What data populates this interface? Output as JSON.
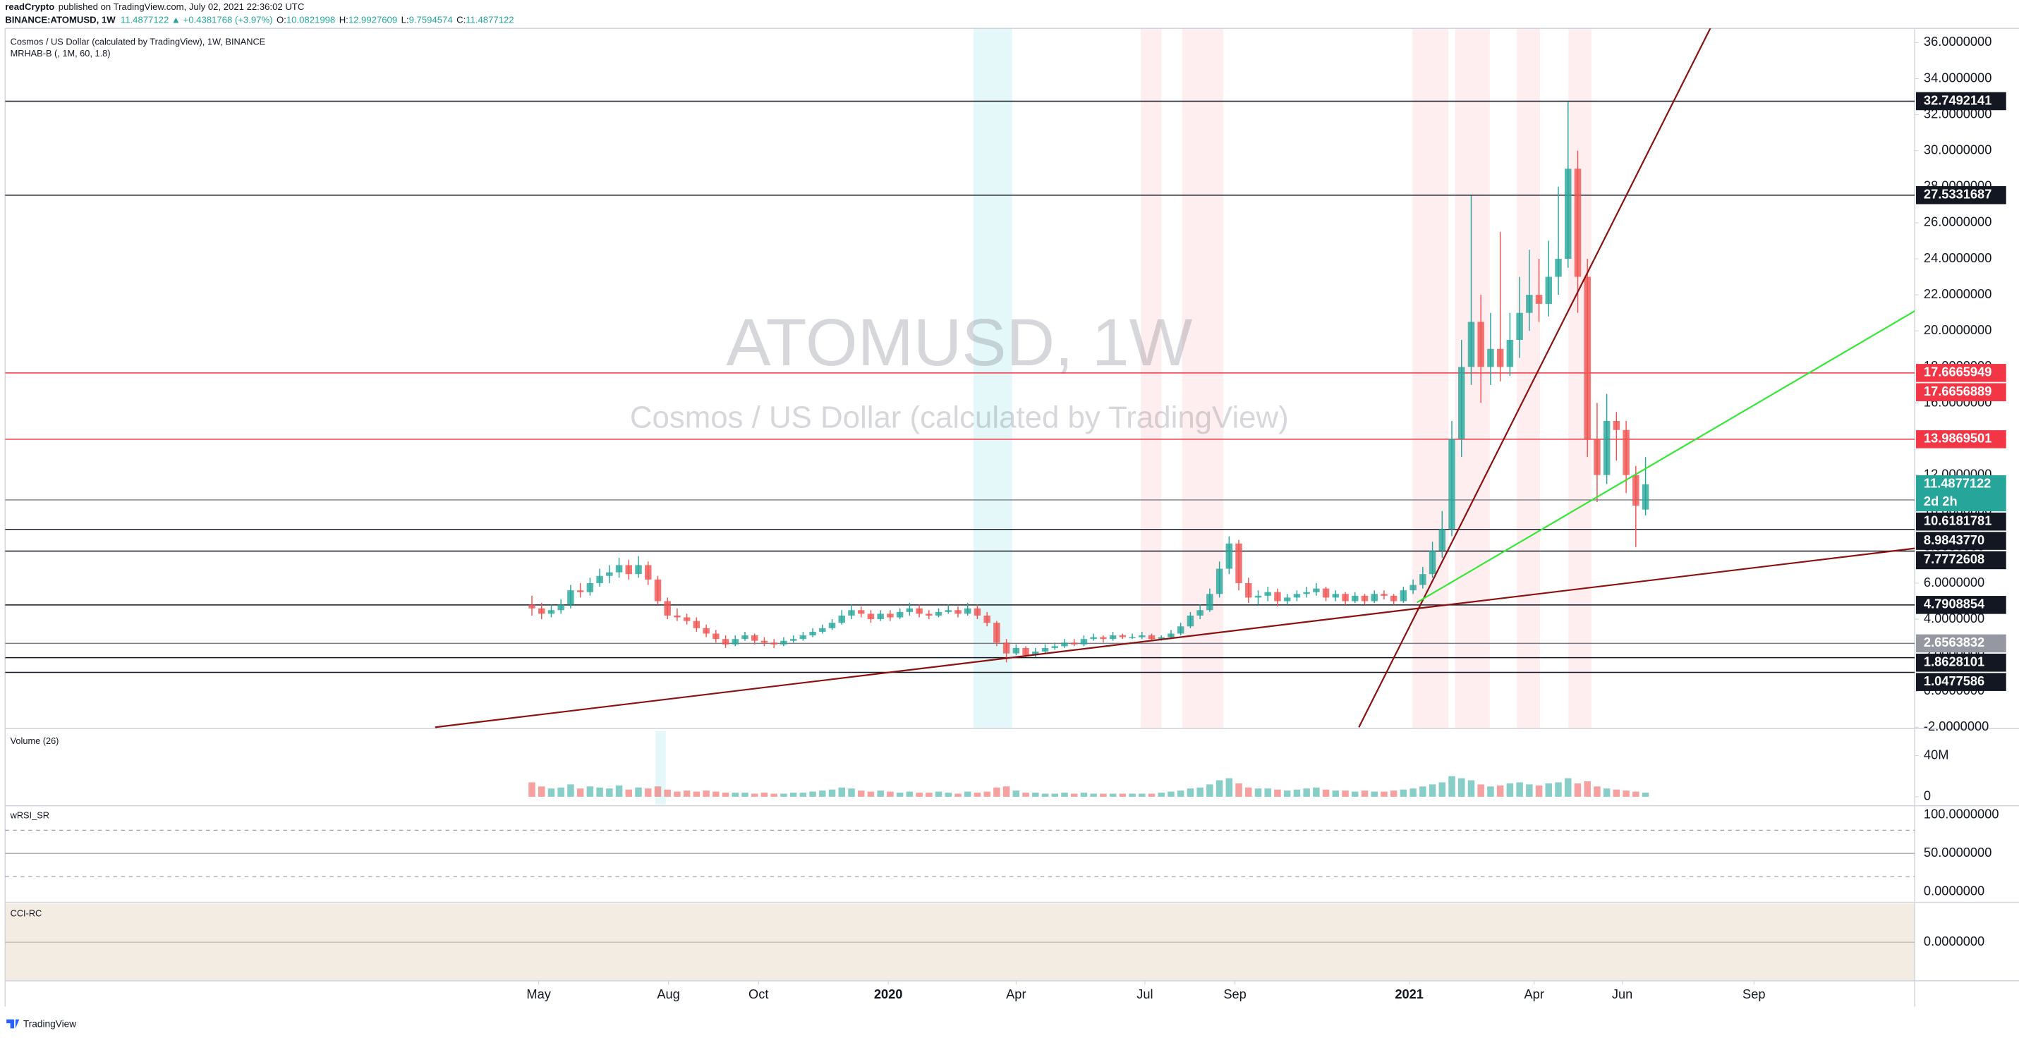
{
  "header": {
    "author": "readCrypto",
    "published": "published on TradingView.com, July 02, 2021 22:36:02 UTC"
  },
  "symbol_line": {
    "symbol": "BINANCE:ATOMUSD, 1W",
    "last": "11.4877122",
    "arrow": "▲",
    "change": "+0.4381768 (+3.97%)",
    "fields": [
      {
        "label": "O:",
        "value": "10.0821998"
      },
      {
        "label": "H:",
        "value": "12.9927609"
      },
      {
        "label": "L:",
        "value": "9.7594574"
      },
      {
        "label": "C:",
        "value": "11.4877122"
      }
    ]
  },
  "footer": "TradingView",
  "chart_data": {
    "type": "candlestick",
    "title": "Cosmos / US Dollar (calculated by TradingView), 1W, BINANCE",
    "indicator": "MRHAB-B (, 1M, 60, 1.8)",
    "watermark": "ATOMUSD, 1W",
    "watermark_sub": "Cosmos / US Dollar (calculated by TradingView)",
    "up_color": "#26a69a",
    "down_color": "#ef5350",
    "grid": false,
    "xlim": [
      -54.4,
      142.8
    ],
    "xticks": [
      {
        "value": 0.7,
        "label": "May"
      },
      {
        "value": 14.1,
        "label": "Aug"
      },
      {
        "value": 23.4,
        "label": "Oct"
      },
      {
        "value": 36.8,
        "label": "2020"
      },
      {
        "value": 50,
        "label": "Apr"
      },
      {
        "value": 63.3,
        "label": "Jul"
      },
      {
        "value": 72.6,
        "label": "Sep"
      },
      {
        "value": 90.6,
        "label": "2021"
      },
      {
        "value": 103.5,
        "label": "Apr"
      },
      {
        "value": 112.6,
        "label": "Jun"
      },
      {
        "value": 126.2,
        "label": "Sep"
      }
    ],
    "ylim": [
      -2.07,
      36.79
    ],
    "yticks": [
      {
        "value": -2,
        "label": "-2.0000000"
      },
      {
        "value": 0,
        "label": "0.0000000"
      },
      {
        "value": 2,
        "label": "2.0000000"
      },
      {
        "value": 4,
        "label": "4.0000000"
      },
      {
        "value": 6,
        "label": "6.0000000"
      },
      {
        "value": 8,
        "label": "8.0000000"
      },
      {
        "value": 10,
        "label": "10.0000000"
      },
      {
        "value": 12,
        "label": "12.0000000"
      },
      {
        "value": 14,
        "label": "14.0000000"
      },
      {
        "value": 16,
        "label": "16.0000000"
      },
      {
        "value": 18,
        "label": "18.0000000"
      },
      {
        "value": 20,
        "label": "20.0000000"
      },
      {
        "value": 22,
        "label": "22.0000000"
      },
      {
        "value": 24,
        "label": "24.0000000"
      },
      {
        "value": 26,
        "label": "26.0000000"
      },
      {
        "value": 28,
        "label": "28.0000000"
      },
      {
        "value": 30,
        "label": "30.0000000"
      },
      {
        "value": 32,
        "label": "32.0000000"
      },
      {
        "value": 34,
        "label": "34.0000000"
      },
      {
        "value": 36,
        "label": "36.0000000"
      }
    ],
    "ohlc": [
      [
        4.8,
        5.3,
        4.2,
        4.6
      ],
      [
        4.6,
        4.9,
        4.0,
        4.3
      ],
      [
        4.3,
        4.8,
        4.1,
        4.5
      ],
      [
        4.5,
        5.1,
        4.3,
        4.8
      ],
      [
        4.8,
        5.9,
        4.6,
        5.6
      ],
      [
        5.6,
        6.0,
        5.2,
        5.5
      ],
      [
        5.5,
        6.3,
        5.3,
        6.0
      ],
      [
        6.0,
        6.8,
        5.8,
        6.4
      ],
      [
        6.4,
        7.0,
        6.0,
        6.6
      ],
      [
        6.6,
        7.4,
        6.3,
        7.0
      ],
      [
        7.0,
        7.3,
        6.2,
        6.5
      ],
      [
        6.5,
        7.5,
        6.3,
        7.0
      ],
      [
        7.0,
        7.2,
        5.9,
        6.2
      ],
      [
        6.2,
        6.4,
        4.8,
        5.0
      ],
      [
        5.0,
        5.2,
        4.0,
        4.2
      ],
      [
        4.2,
        4.6,
        3.9,
        4.1
      ],
      [
        4.1,
        4.3,
        3.7,
        3.9
      ],
      [
        3.9,
        4.1,
        3.3,
        3.5
      ],
      [
        3.5,
        3.7,
        3.0,
        3.2
      ],
      [
        3.2,
        3.4,
        2.7,
        2.9
      ],
      [
        2.9,
        3.1,
        2.4,
        2.6
      ],
      [
        2.6,
        3.1,
        2.5,
        2.9
      ],
      [
        2.9,
        3.3,
        2.8,
        3.1
      ],
      [
        3.1,
        3.2,
        2.6,
        2.8
      ],
      [
        2.8,
        3.0,
        2.5,
        2.7
      ],
      [
        2.7,
        2.9,
        2.4,
        2.6
      ],
      [
        2.6,
        3.0,
        2.5,
        2.8
      ],
      [
        2.8,
        3.1,
        2.7,
        2.9
      ],
      [
        2.9,
        3.3,
        2.8,
        3.1
      ],
      [
        3.1,
        3.5,
        3.0,
        3.3
      ],
      [
        3.3,
        3.7,
        3.2,
        3.5
      ],
      [
        3.5,
        4.0,
        3.4,
        3.8
      ],
      [
        3.8,
        4.5,
        3.7,
        4.2
      ],
      [
        4.2,
        4.8,
        4.0,
        4.5
      ],
      [
        4.5,
        4.7,
        4.1,
        4.3
      ],
      [
        4.3,
        4.5,
        3.8,
        4.0
      ],
      [
        4.0,
        4.5,
        3.9,
        4.3
      ],
      [
        4.3,
        4.5,
        3.9,
        4.1
      ],
      [
        4.1,
        4.6,
        4.0,
        4.4
      ],
      [
        4.4,
        4.9,
        4.2,
        4.6
      ],
      [
        4.6,
        4.8,
        4.1,
        4.3
      ],
      [
        4.3,
        4.5,
        4.0,
        4.2
      ],
      [
        4.2,
        4.6,
        4.1,
        4.4
      ],
      [
        4.4,
        4.8,
        4.3,
        4.5
      ],
      [
        4.5,
        4.7,
        4.1,
        4.3
      ],
      [
        4.3,
        4.9,
        4.2,
        4.6
      ],
      [
        4.6,
        4.8,
        4.0,
        4.2
      ],
      [
        4.2,
        4.4,
        3.6,
        3.8
      ],
      [
        3.8,
        3.9,
        2.5,
        2.7
      ],
      [
        2.7,
        2.9,
        1.6,
        2.1
      ],
      [
        2.1,
        2.6,
        2.0,
        2.4
      ],
      [
        2.4,
        2.5,
        1.9,
        2.0
      ],
      [
        2.0,
        2.4,
        1.9,
        2.2
      ],
      [
        2.2,
        2.6,
        2.1,
        2.4
      ],
      [
        2.4,
        2.7,
        2.3,
        2.5
      ],
      [
        2.5,
        2.9,
        2.4,
        2.7
      ],
      [
        2.7,
        2.9,
        2.5,
        2.6
      ],
      [
        2.6,
        3.1,
        2.5,
        2.9
      ],
      [
        2.9,
        3.2,
        2.8,
        3.0
      ],
      [
        3.0,
        3.1,
        2.7,
        2.9
      ],
      [
        2.9,
        3.3,
        2.8,
        3.1
      ],
      [
        3.1,
        3.2,
        2.9,
        3.0
      ],
      [
        3.0,
        3.2,
        2.9,
        3.0
      ],
      [
        3.0,
        3.3,
        2.9,
        3.1
      ],
      [
        3.1,
        3.2,
        2.8,
        2.9
      ],
      [
        2.9,
        3.1,
        2.8,
        3.0
      ],
      [
        3.0,
        3.4,
        2.9,
        3.2
      ],
      [
        3.2,
        3.8,
        3.1,
        3.6
      ],
      [
        3.6,
        4.4,
        3.5,
        4.2
      ],
      [
        4.2,
        4.8,
        4.0,
        4.5
      ],
      [
        4.5,
        5.7,
        4.4,
        5.4
      ],
      [
        5.4,
        7.2,
        5.2,
        6.8
      ],
      [
        6.8,
        8.6,
        6.5,
        8.2
      ],
      [
        8.2,
        8.4,
        5.6,
        6.0
      ],
      [
        6.0,
        6.3,
        4.9,
        5.2
      ],
      [
        5.2,
        5.6,
        4.8,
        5.3
      ],
      [
        5.3,
        5.8,
        5.0,
        5.5
      ],
      [
        5.5,
        5.7,
        4.7,
        5.0
      ],
      [
        5.0,
        5.4,
        4.8,
        5.2
      ],
      [
        5.2,
        5.6,
        5.0,
        5.4
      ],
      [
        5.4,
        5.8,
        5.2,
        5.5
      ],
      [
        5.5,
        6.0,
        5.3,
        5.7
      ],
      [
        5.7,
        5.8,
        5.0,
        5.2
      ],
      [
        5.2,
        5.6,
        5.0,
        5.4
      ],
      [
        5.4,
        5.5,
        4.8,
        5.0
      ],
      [
        5.0,
        5.5,
        4.9,
        5.3
      ],
      [
        5.3,
        5.4,
        4.8,
        5.0
      ],
      [
        5.0,
        5.6,
        4.9,
        5.4
      ],
      [
        5.4,
        5.6,
        5.1,
        5.3
      ],
      [
        5.3,
        5.4,
        4.8,
        5.0
      ],
      [
        5.0,
        5.8,
        4.9,
        5.6
      ],
      [
        5.6,
        6.2,
        5.4,
        5.9
      ],
      [
        5.9,
        6.9,
        5.7,
        6.5
      ],
      [
        6.5,
        8.3,
        6.3,
        7.8
      ],
      [
        7.8,
        10.0,
        7.4,
        9.0
      ],
      [
        9.0,
        15.0,
        8.6,
        14.0
      ],
      [
        14.0,
        19.5,
        13.0,
        18.0
      ],
      [
        18.0,
        27.5,
        17.0,
        20.5
      ],
      [
        20.5,
        22.0,
        16.0,
        18.0
      ],
      [
        18.0,
        21.0,
        17.0,
        19.0
      ],
      [
        19.0,
        25.5,
        17.2,
        18.0
      ],
      [
        18.0,
        21.0,
        17.5,
        19.5
      ],
      [
        19.5,
        23.0,
        18.5,
        21.0
      ],
      [
        21.0,
        24.5,
        20.0,
        22.0
      ],
      [
        22.0,
        24.0,
        20.5,
        21.5
      ],
      [
        21.5,
        25.0,
        20.8,
        23.0
      ],
      [
        23.0,
        28.0,
        22.0,
        24.0
      ],
      [
        24.0,
        32.7,
        23.5,
        29.0
      ],
      [
        29.0,
        30.0,
        21.0,
        23.0
      ],
      [
        23.0,
        24.0,
        13.0,
        14.0
      ],
      [
        14.0,
        16.0,
        10.5,
        12.0
      ],
      [
        12.0,
        16.5,
        11.5,
        15.0
      ],
      [
        15.0,
        15.5,
        12.8,
        14.5
      ],
      [
        14.5,
        15.0,
        11.0,
        12.0
      ],
      [
        12.0,
        12.5,
        8.0,
        10.3
      ],
      [
        10.0821998,
        12.9927609,
        9.7594574,
        11.4877122
      ]
    ],
    "levels": [
      {
        "value": 32.7492141,
        "color": "#131722",
        "line_color": "#131722"
      },
      {
        "value": 27.5331687,
        "color": "#131722",
        "line_color": "#131722"
      },
      {
        "value": 17.6665949,
        "color": "#f23645"
      },
      {
        "value": 17.6656889,
        "color": "#f23645",
        "line_color": "#f23645"
      },
      {
        "value": 13.9869501,
        "color": "#f23645",
        "line_color": "#f23645"
      },
      {
        "value": 11.4877122,
        "color": "#26a69a",
        "countdown": "2d 2h"
      },
      {
        "value": 10.6181781,
        "color": "#131722",
        "line_color": "#787b86"
      },
      {
        "value": 8.984377,
        "label": "8.9843770",
        "color": "#131722",
        "line_color": "#131722"
      },
      {
        "value": 7.7772608,
        "color": "#131722",
        "line_color": "#131722"
      },
      {
        "value": 4.7908854,
        "color": "#131722",
        "line_color": "#131722"
      },
      {
        "value": 2.6563832,
        "color": "#9598a1",
        "line_color": "#787b86"
      },
      {
        "value": 1.8628101,
        "color": "#131722",
        "line_color": "#131722"
      },
      {
        "value": 1.0477586,
        "color": "#131722",
        "line_color": "#131722"
      }
    ],
    "trendlines": [
      {
        "color": "#8b1010",
        "points": [
          [
            -10,
            -2
          ],
          [
            142.8,
            7.93
          ]
        ]
      },
      {
        "color": "#8b1010",
        "points": [
          [
            85.4,
            -2
          ],
          [
            121.7,
            36.8
          ]
        ]
      },
      {
        "color": "#33e833",
        "points": [
          [
            91.4,
            4.93
          ],
          [
            142.8,
            21.1
          ]
        ]
      }
    ],
    "volume": {
      "title": "Volume (26)",
      "ylim": [
        -7500000,
        63750000
      ],
      "yticks": [
        {
          "value": 0,
          "label": "0"
        },
        {
          "value": 40000000,
          "label": "40M"
        }
      ],
      "values": [
        14000000,
        10000000,
        8000000,
        9000000,
        12000000,
        8000000,
        10000000,
        9000000,
        8000000,
        11000000,
        7000000,
        9000000,
        8000000,
        10000000,
        7000000,
        5000000,
        6000000,
        5000000,
        6000000,
        5000000,
        4000000,
        4000000,
        4000000,
        3000000,
        4000000,
        3000000,
        3000000,
        4000000,
        4000000,
        5000000,
        6000000,
        7000000,
        9000000,
        8000000,
        6000000,
        5000000,
        6000000,
        5000000,
        4000000,
        5000000,
        4000000,
        4000000,
        5000000,
        4000000,
        3000000,
        5000000,
        4000000,
        5000000,
        9000000,
        10000000,
        6000000,
        4000000,
        4000000,
        3000000,
        3000000,
        4000000,
        3000000,
        4000000,
        3000000,
        3000000,
        3000000,
        3000000,
        3000000,
        3000000,
        3000000,
        4000000,
        5000000,
        6000000,
        8000000,
        9000000,
        12000000,
        16000000,
        18000000,
        13000000,
        9000000,
        8000000,
        8000000,
        7000000,
        6000000,
        7000000,
        8000000,
        9000000,
        7000000,
        6000000,
        6000000,
        5000000,
        6000000,
        5000000,
        5000000,
        6000000,
        7000000,
        8000000,
        10000000,
        12000000,
        14000000,
        20000000,
        18000000,
        16000000,
        12000000,
        10000000,
        11000000,
        13000000,
        14000000,
        12000000,
        11000000,
        13000000,
        14000000,
        18000000,
        13000000,
        15000000,
        10000000,
        8000000,
        7000000,
        6000000,
        5000000,
        4000000
      ]
    },
    "rsi_pane": {
      "title": "wRSI_SR",
      "ylim": [
        -11.7,
        110
      ],
      "guides": [
        80,
        20
      ],
      "yticks": [
        {
          "value": 0,
          "label": "0.0000000"
        },
        {
          "value": 50,
          "label": "50.0000000"
        },
        {
          "value": 100,
          "label": "100.0000000"
        }
      ]
    },
    "cci_pane": {
      "title": "CCI-RC",
      "ylim": [
        -1,
        1
      ],
      "yticks": [
        {
          "value": 0,
          "label": "0.0000000"
        }
      ]
    }
  }
}
